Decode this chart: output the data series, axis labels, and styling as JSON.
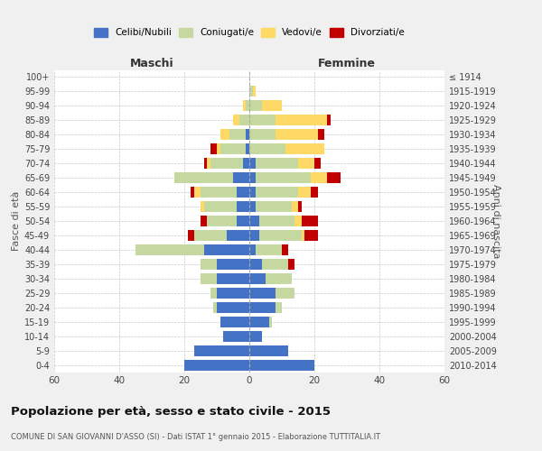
{
  "age_groups": [
    "100+",
    "95-99",
    "90-94",
    "85-89",
    "80-84",
    "75-79",
    "70-74",
    "65-69",
    "60-64",
    "55-59",
    "50-54",
    "45-49",
    "40-44",
    "35-39",
    "30-34",
    "25-29",
    "20-24",
    "15-19",
    "10-14",
    "5-9",
    "0-4"
  ],
  "birth_years": [
    "≤ 1914",
    "1915-1919",
    "1920-1924",
    "1925-1929",
    "1930-1934",
    "1935-1939",
    "1940-1944",
    "1945-1949",
    "1950-1954",
    "1955-1959",
    "1960-1964",
    "1965-1969",
    "1970-1974",
    "1975-1979",
    "1980-1984",
    "1985-1989",
    "1990-1994",
    "1995-1999",
    "2000-2004",
    "2005-2009",
    "2010-2014"
  ],
  "males": {
    "celibi": [
      0,
      0,
      0,
      0,
      1,
      1,
      2,
      5,
      4,
      4,
      4,
      7,
      14,
      10,
      10,
      10,
      10,
      9,
      8,
      17,
      20
    ],
    "coniugati": [
      0,
      0,
      1,
      3,
      5,
      8,
      10,
      18,
      11,
      10,
      9,
      10,
      21,
      5,
      5,
      2,
      1,
      0,
      0,
      0,
      0
    ],
    "vedovi": [
      0,
      0,
      1,
      2,
      3,
      1,
      1,
      0,
      2,
      1,
      0,
      0,
      0,
      0,
      0,
      0,
      0,
      0,
      0,
      0,
      0
    ],
    "divorziati": [
      0,
      0,
      0,
      0,
      0,
      2,
      1,
      0,
      1,
      0,
      2,
      2,
      0,
      0,
      0,
      0,
      0,
      0,
      0,
      0,
      0
    ]
  },
  "females": {
    "nubili": [
      0,
      0,
      0,
      0,
      0,
      0,
      2,
      2,
      2,
      2,
      3,
      3,
      2,
      4,
      5,
      8,
      8,
      6,
      4,
      12,
      20
    ],
    "coniugate": [
      0,
      1,
      4,
      8,
      8,
      11,
      13,
      17,
      13,
      11,
      11,
      13,
      8,
      8,
      8,
      6,
      2,
      1,
      0,
      0,
      0
    ],
    "vedove": [
      0,
      1,
      6,
      16,
      13,
      12,
      5,
      5,
      4,
      2,
      2,
      1,
      0,
      0,
      0,
      0,
      0,
      0,
      0,
      0,
      0
    ],
    "divorziate": [
      0,
      0,
      0,
      1,
      2,
      0,
      2,
      4,
      2,
      1,
      5,
      4,
      2,
      2,
      0,
      0,
      0,
      0,
      0,
      0,
      0
    ]
  },
  "colors": {
    "celibi": "#4472c4",
    "coniugati": "#c5d8a0",
    "vedovi": "#ffd966",
    "divorziati": "#c00000"
  },
  "title": "Popolazione per età, sesso e stato civile - 2015",
  "subtitle": "COMUNE DI SAN GIOVANNI D'ASSO (SI) - Dati ISTAT 1° gennaio 2015 - Elaborazione TUTTITALIA.IT",
  "xlabel_left": "Maschi",
  "xlabel_right": "Femmine",
  "ylabel_left": "Fasce di età",
  "ylabel_right": "Anni di nascita",
  "xlim": 60,
  "background_color": "#f0f0f0",
  "plot_background": "#ffffff"
}
